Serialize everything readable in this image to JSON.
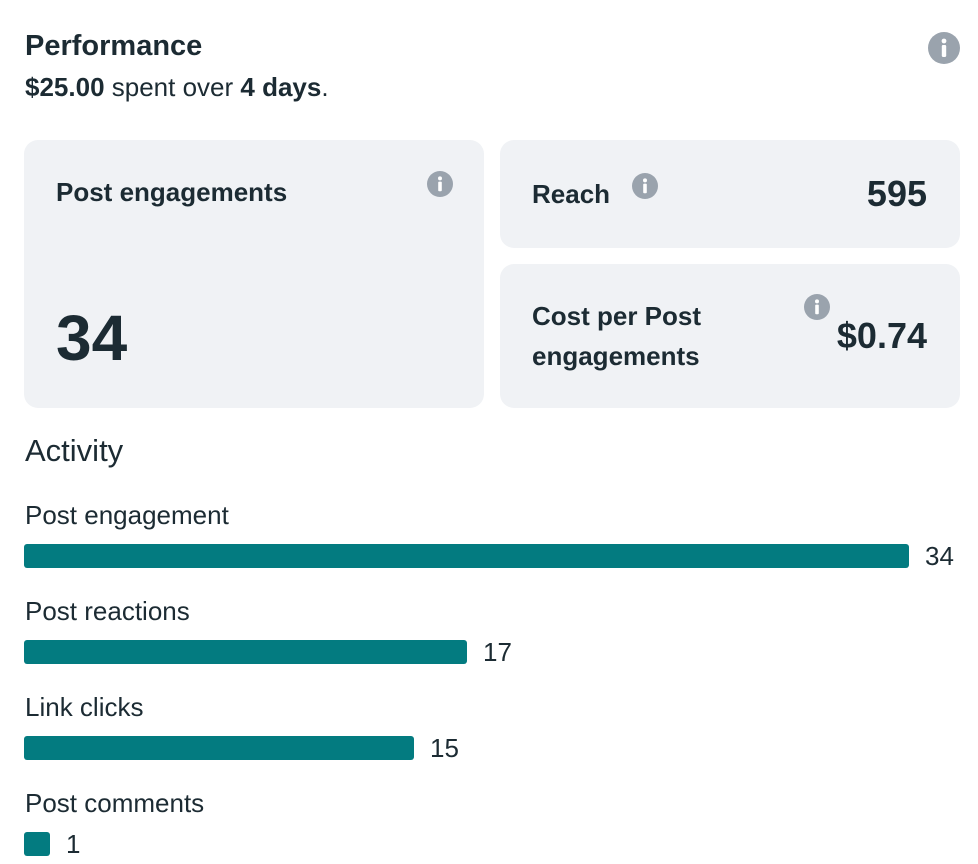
{
  "performance": {
    "title": "Performance",
    "spent_amount": "$25.00",
    "spent_text": " spent over ",
    "days": "4 days",
    "period": "."
  },
  "cards": {
    "post_engagements": {
      "label": "Post engagements",
      "value": "34"
    },
    "reach": {
      "label": "Reach",
      "value": "595"
    },
    "cost_per": {
      "label_line1": "Cost per Post",
      "label_line2": "engagements",
      "value": "$0.74"
    }
  },
  "activity": {
    "title": "Activity",
    "max": 34,
    "items": [
      {
        "label": "Post engagement",
        "value": 34
      },
      {
        "label": "Post reactions",
        "value": 17
      },
      {
        "label": "Link clicks",
        "value": 15
      },
      {
        "label": "Post comments",
        "value": 1
      }
    ]
  },
  "colors": {
    "bar": "#037b80",
    "card_bg": "#f0f2f5",
    "info_icon": "#9aa3ad",
    "text": "#1c2b33"
  },
  "icons": {
    "info": "info-icon"
  }
}
